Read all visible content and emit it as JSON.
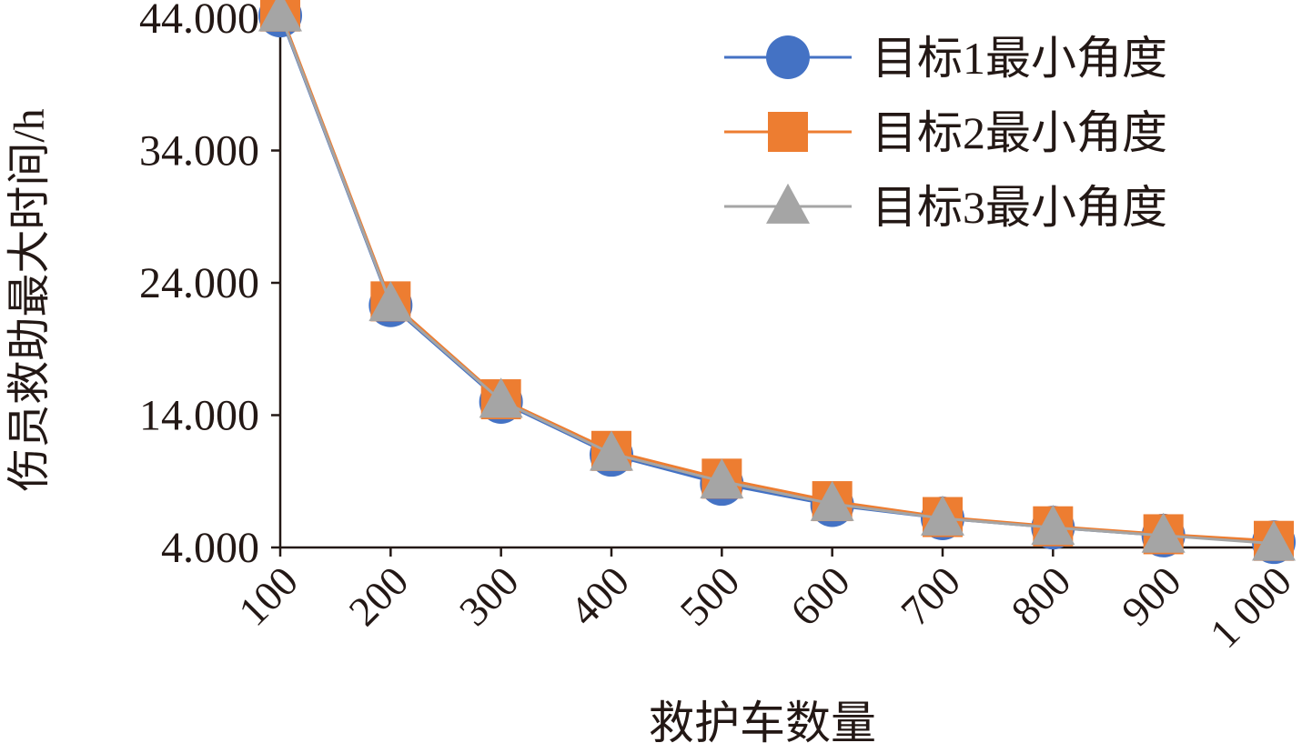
{
  "chart_data": {
    "type": "line",
    "xlabel": "救护车数量",
    "ylabel": "伤员救助最大时间/h",
    "categories": [
      "100",
      "200",
      "300",
      "400",
      "500",
      "600",
      "700",
      "800",
      "900",
      "1 000"
    ],
    "yticks": [
      "4.000",
      "14.000",
      "24.000",
      "34.000",
      "44.000"
    ],
    "ylim": [
      4,
      44
    ],
    "grid": false,
    "legend_position": "top-right",
    "series": [
      {
        "name": "目标1最小角度",
        "color": "#4472c4",
        "marker": "circle",
        "values": [
          44.2,
          22.3,
          15.0,
          11.0,
          8.8,
          7.2,
          6.2,
          5.5,
          4.9,
          4.4
        ]
      },
      {
        "name": "目标2最小角度",
        "color": "#ed7d31",
        "marker": "square",
        "values": [
          44.5,
          22.6,
          15.2,
          11.3,
          9.2,
          7.5,
          6.3,
          5.6,
          5.0,
          4.5
        ]
      },
      {
        "name": "目标3最小角度",
        "color": "#a5a5a5",
        "marker": "triangle",
        "values": [
          44.3,
          22.4,
          15.1,
          11.1,
          9.0,
          7.3,
          6.2,
          5.5,
          4.9,
          4.3
        ]
      }
    ]
  }
}
